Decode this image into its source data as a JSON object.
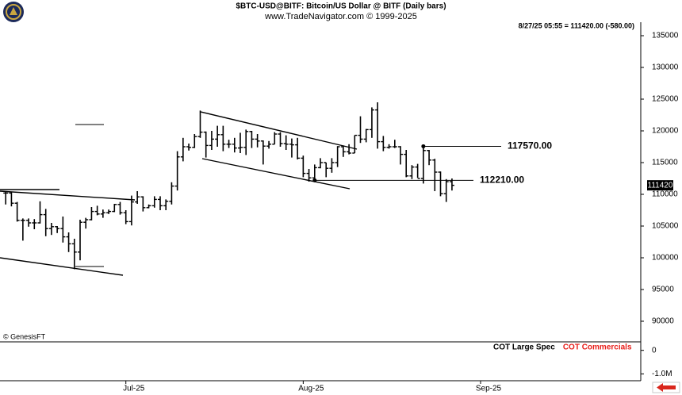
{
  "header": {
    "title": "$BTC-USD@BITF:  Bitcoin/US Dollar @ BITF  (Daily bars)",
    "subtitle": "www.TradeNavigator.com © 1999-2025",
    "quote": "8/27/25 05:55 = 111420.00 (-580.00)",
    "copyright": "© GenesisFT"
  },
  "chart_data": [
    {
      "type": "ohlc",
      "color": "#000000",
      "x": [
        0,
        1,
        2,
        3,
        4,
        5,
        6,
        7,
        8,
        9,
        10,
        11,
        12,
        13,
        14,
        15,
        16,
        17,
        18,
        19,
        20,
        21,
        22,
        23,
        24,
        25,
        26,
        27,
        28,
        29,
        30,
        31,
        32,
        33,
        34,
        35,
        36,
        37,
        38,
        39,
        40,
        41,
        42,
        43,
        44,
        45,
        46,
        47,
        48,
        49,
        50,
        51,
        52,
        53,
        54,
        55,
        56,
        57,
        58,
        59,
        60,
        61,
        62,
        63,
        64,
        65,
        66,
        67,
        68,
        69,
        70,
        71,
        72,
        73,
        74,
        75,
        76,
        77,
        78
      ],
      "open": [
        110200,
        110200,
        108600,
        105900,
        105900,
        105500,
        105500,
        106800,
        104600,
        104900,
        104600,
        103300,
        102200,
        100900,
        105600,
        106000,
        107300,
        106900,
        107100,
        107300,
        108400,
        107100,
        105700,
        108800,
        109600,
        107900,
        108200,
        109200,
        108200,
        108900,
        111300,
        115900,
        117500,
        117400,
        119100,
        119800,
        117700,
        118700,
        119400,
        117900,
        117900,
        117300,
        117400,
        119900,
        118700,
        118400,
        117600,
        117900,
        119500,
        118000,
        117900,
        117800,
        115700,
        113300,
        112600,
        114200,
        115000,
        114100,
        115000,
        117500,
        116700,
        116500,
        119300,
        118700,
        120200,
        123300,
        118300,
        117400,
        117500,
        117500,
        116300,
        112900,
        114300,
        112500,
        116900,
        115400,
        113500,
        110100,
        112000
      ],
      "high": [
        110400,
        110400,
        108800,
        106200,
        106200,
        106100,
        108900,
        107700,
        105500,
        105000,
        106500,
        104000,
        103000,
        106000,
        106300,
        108000,
        108200,
        107600,
        107600,
        108500,
        108800,
        107500,
        109800,
        110500,
        109700,
        108400,
        109700,
        109700,
        109200,
        111900,
        116800,
        118900,
        118000,
        119500,
        123200,
        119900,
        120000,
        120800,
        120800,
        118600,
        118900,
        119700,
        120200,
        120000,
        119500,
        118500,
        118400,
        119800,
        119800,
        119300,
        118800,
        118900,
        116100,
        114000,
        114700,
        115700,
        115000,
        115700,
        117600,
        117700,
        117900,
        119300,
        122300,
        120300,
        123700,
        124500,
        119200,
        117900,
        118600,
        117600,
        117000,
        114600,
        114800,
        117600,
        117000,
        115600,
        113600,
        112400,
        112500
      ],
      "low": [
        108400,
        108100,
        105700,
        102700,
        104900,
        104500,
        105400,
        103400,
        103600,
        103900,
        102400,
        100900,
        98200,
        99600,
        104600,
        105900,
        106700,
        106300,
        106900,
        107200,
        106800,
        105300,
        105100,
        108500,
        107300,
        107800,
        107900,
        107500,
        107500,
        108400,
        110600,
        115200,
        116900,
        117300,
        118900,
        115800,
        117000,
        117500,
        116800,
        117300,
        116600,
        116500,
        116200,
        117300,
        117400,
        114700,
        117200,
        117900,
        117500,
        117000,
        115800,
        115500,
        112700,
        112000,
        112000,
        114100,
        112700,
        113400,
        114300,
        115900,
        116300,
        116500,
        118100,
        118200,
        118900,
        117200,
        116800,
        117200,
        117300,
        114700,
        112700,
        112400,
        112600,
        111700,
        114600,
        110500,
        109700,
        108800,
        110600
      ],
      "close": [
        110200,
        108600,
        105900,
        105900,
        105500,
        105500,
        106800,
        104600,
        104900,
        104600,
        103300,
        102200,
        100900,
        105600,
        106000,
        107300,
        106900,
        107100,
        107300,
        108400,
        107100,
        105700,
        108800,
        109600,
        107900,
        108200,
        109200,
        108200,
        108900,
        111300,
        115900,
        117500,
        117400,
        119100,
        119800,
        117700,
        118700,
        119400,
        117900,
        117900,
        117300,
        117400,
        119900,
        118700,
        118400,
        117600,
        117900,
        119500,
        118000,
        117900,
        117800,
        115700,
        113300,
        112600,
        114200,
        115000,
        114100,
        115000,
        117500,
        116700,
        116500,
        119300,
        118700,
        120200,
        123300,
        118300,
        117400,
        117500,
        117500,
        116300,
        112900,
        114300,
        112500,
        116900,
        115400,
        113500,
        110100,
        112000,
        111420
      ],
      "xlim": [
        -1,
        111
      ],
      "xticks": [
        {
          "value": 21,
          "label": "Jul-25"
        },
        {
          "value": 52,
          "label": "Aug-25"
        },
        {
          "value": 83,
          "label": "Sep-25"
        }
      ],
      "ylim": [
        86750,
        137125
      ],
      "yticks": [
        90000,
        95000,
        100000,
        105000,
        110000,
        115000,
        120000,
        125000,
        130000,
        135000
      ],
      "last_price": {
        "value": 111420,
        "label": "111420"
      },
      "annotations": [
        {
          "x": 73,
          "value": 117570,
          "label": "117570.00"
        },
        {
          "x": 54,
          "value": 112210,
          "label": "112210.00"
        }
      ]
    },
    {
      "type": "cot",
      "series": [
        {
          "name": "COT Large Spec",
          "color": "#000000",
          "values": []
        },
        {
          "name": "COT Commercials",
          "color": "#e8201c",
          "values": []
        }
      ],
      "ylim": [
        -1290000,
        360000
      ],
      "yticks": [
        0,
        {
          "value": -1000000,
          "label": "-1.0M"
        }
      ]
    }
  ]
}
